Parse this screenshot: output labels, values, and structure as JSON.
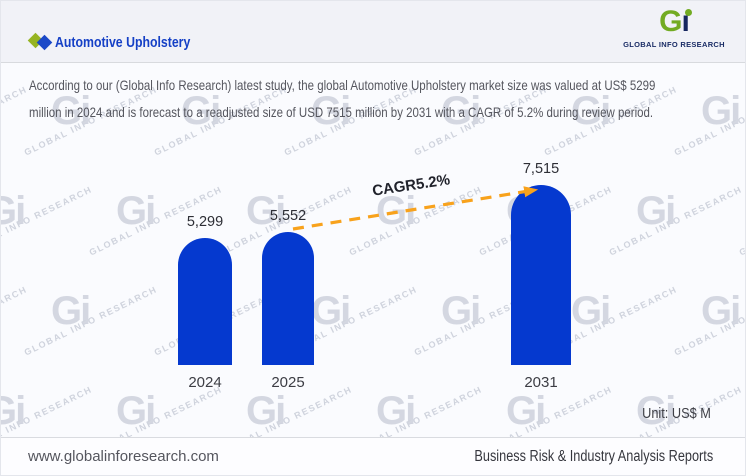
{
  "header": {
    "title": "Automotive Upholstery",
    "logo": {
      "glyph": "Gi",
      "caption": "GLOBAL INFO RESEARCH"
    }
  },
  "description": {
    "lines": [
      "According to our (Global Info Research) latest study, the global Automotive Upholstery market size was valued at US$ 5299",
      "million in 2024 and is forecast to a readjusted size of USD 7515 million by 2031 with a CAGR of 5.2% during review period."
    ]
  },
  "chart_data": {
    "type": "bar",
    "title": "Automotive Upholstery market size",
    "categories": [
      "2024",
      "2025",
      "2031"
    ],
    "values": [
      5299,
      5552,
      7515
    ],
    "value_labels": [
      "5,299",
      "5,552",
      "7,515"
    ],
    "cagr_label": "CAGR5.2%",
    "unit_label": "Unit: US$ M",
    "bar_color": "#0539cf",
    "arrow_color": "#f8a21c",
    "xlabel": "",
    "ylabel": "",
    "ylim": [
      0,
      8000
    ],
    "grid": false,
    "legend": false
  },
  "watermark": {
    "glyph": "Gi",
    "text": "GLOBAL INFO RESEARCH"
  },
  "footer": {
    "website": "www.globalinforesearch.com",
    "tagline": "Business Risk & Industry Analysis Reports"
  }
}
